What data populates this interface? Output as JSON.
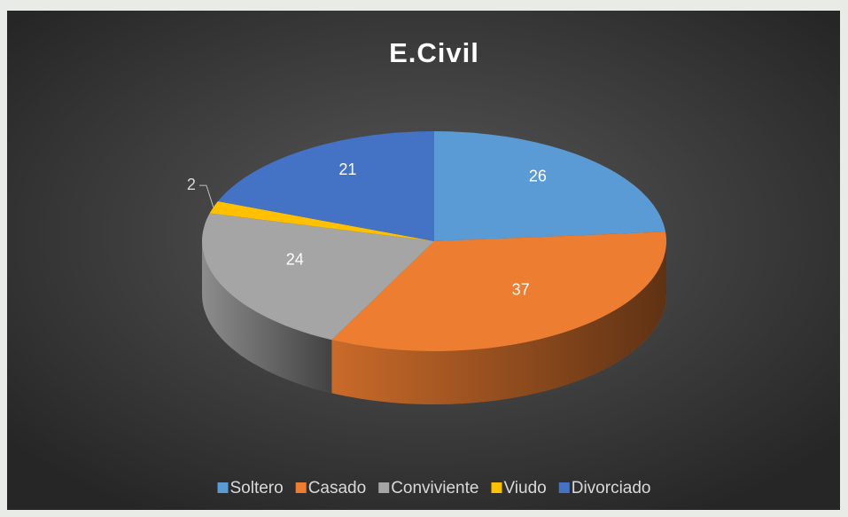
{
  "chart_data": {
    "type": "pie3d",
    "title": "E.Civil",
    "categories": [
      "Soltero",
      "Casado",
      "Conviviente",
      "Viudo",
      "Divorciado"
    ],
    "values": [
      26,
      37,
      24,
      2,
      21
    ],
    "colors": [
      "#5b9bd5",
      "#ed7d31",
      "#a5a5a5",
      "#ffc000",
      "#4472c4"
    ],
    "legend": "bottom"
  }
}
